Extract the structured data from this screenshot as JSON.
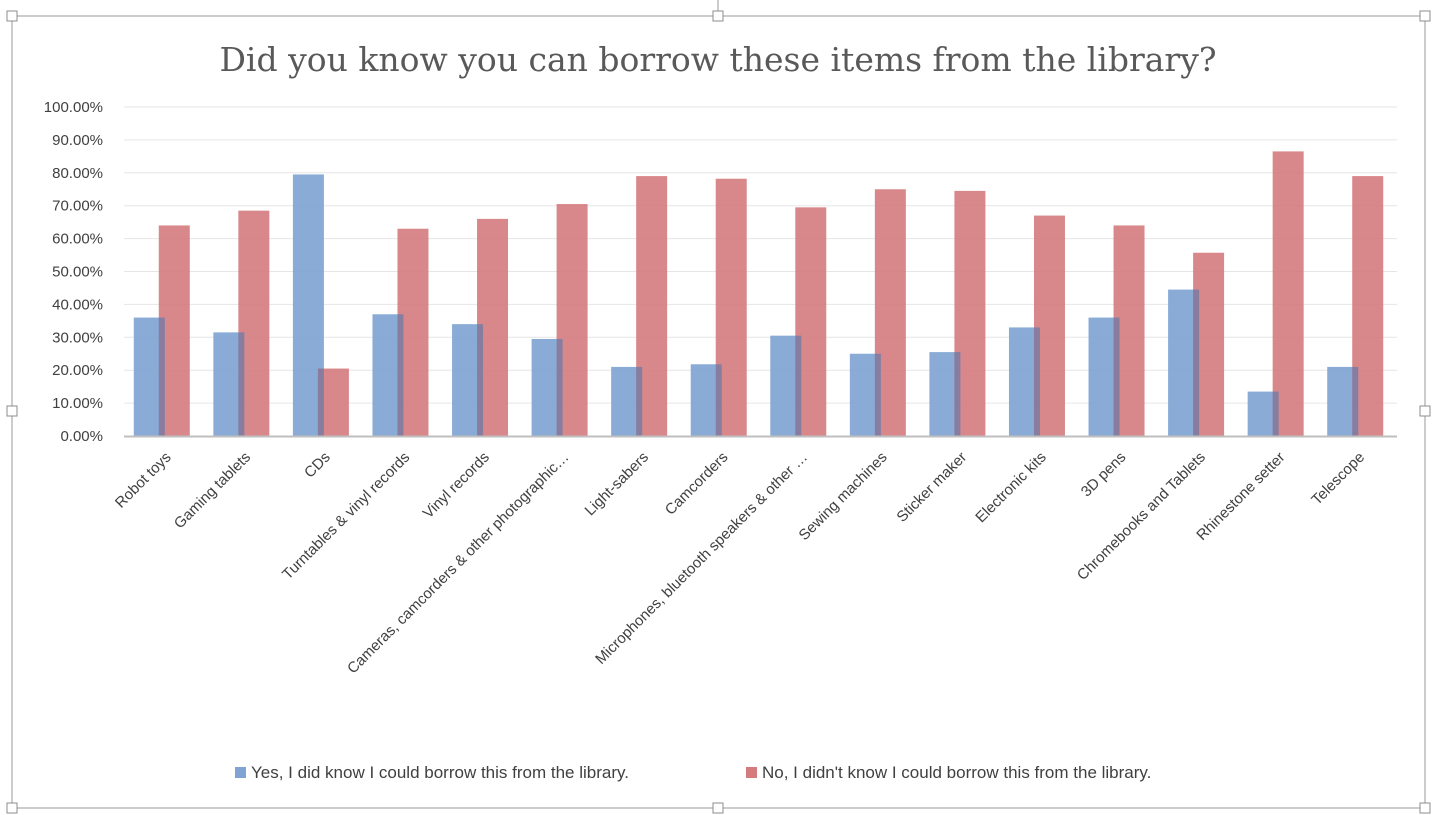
{
  "colors": {
    "yes": "#7fa4d3",
    "no": "#d47b7d",
    "yes_edge": "#5a7fb0",
    "no_edge": "#b05c5e"
  },
  "chart_data": {
    "type": "bar",
    "title": "Did you know you can borrow these items from the library?",
    "xlabel": "",
    "ylabel": "",
    "ylim": [
      0,
      1
    ],
    "y_ticks": [
      "0.00%",
      "10.00%",
      "20.00%",
      "30.00%",
      "40.00%",
      "50.00%",
      "60.00%",
      "70.00%",
      "80.00%",
      "90.00%",
      "100.00%"
    ],
    "grid": true,
    "legend_position": "bottom",
    "categories": [
      "Robot toys",
      "Gaming tablets",
      "CDs",
      "Turntables & vinyl records",
      "Vinyl records",
      "Cameras, camcorders & other photographic…",
      "Light-sabers",
      "Camcorders",
      "Microphones, bluetooth speakers & other …",
      "Sewing machines",
      "Sticker maker",
      "Electronic kits",
      "3D pens",
      "Chromebooks and Tablets",
      "Rhinestone setter",
      "Telescope"
    ],
    "series": [
      {
        "name": "Yes, I did know I could borrow this from the library.",
        "values": [
          0.36,
          0.315,
          0.795,
          0.37,
          0.34,
          0.295,
          0.21,
          0.218,
          0.305,
          0.25,
          0.255,
          0.33,
          0.36,
          0.445,
          0.135,
          0.21
        ]
      },
      {
        "name": "No, I didn't know I could borrow this from the library.",
        "values": [
          0.64,
          0.685,
          0.205,
          0.63,
          0.66,
          0.705,
          0.79,
          0.782,
          0.695,
          0.75,
          0.745,
          0.67,
          0.64,
          0.557,
          0.865,
          0.79
        ]
      }
    ]
  }
}
